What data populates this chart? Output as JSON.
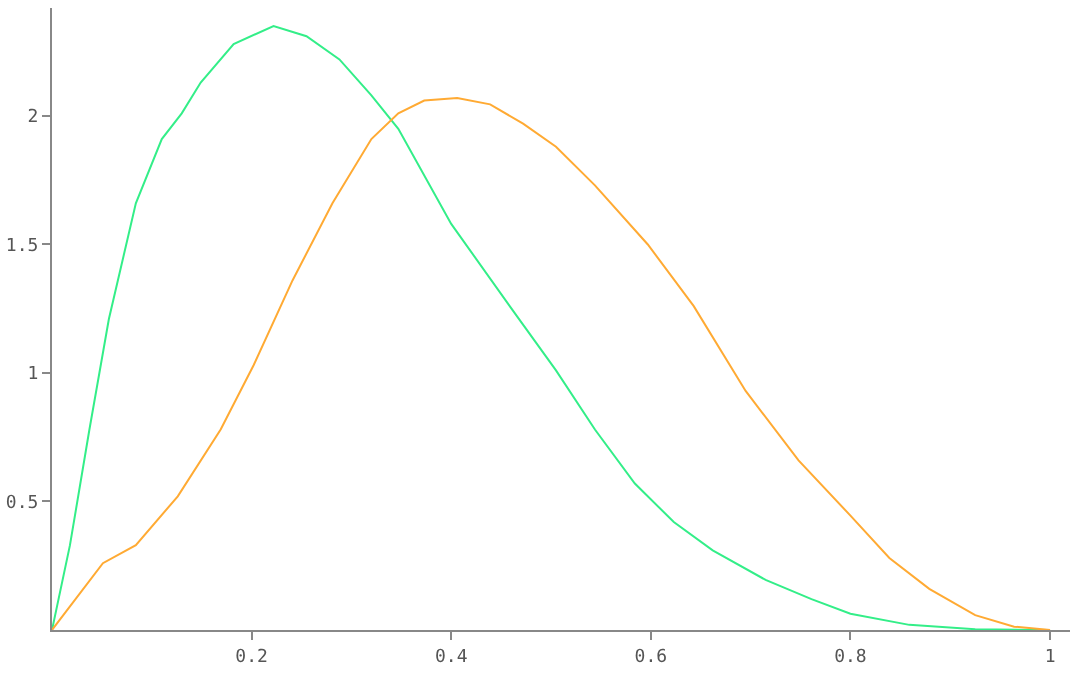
{
  "chart_data": {
    "type": "line",
    "grid": false,
    "xlim": [
      0,
      1.02
    ],
    "ylim": [
      0,
      2.42
    ],
    "xticks": [
      0.2,
      0.4,
      0.6,
      0.8,
      1
    ],
    "yticks": [
      0.5,
      1,
      1.5,
      2
    ],
    "marker": "none",
    "line_style": "solid",
    "series": [
      {
        "color": "#33ee88",
        "x": [
          0,
          0.018,
          0.0375,
          0.057,
          0.084,
          0.11,
          0.13,
          0.149,
          0.182,
          0.222,
          0.255,
          0.288,
          0.32,
          0.347,
          0.4,
          0.466,
          0.505,
          0.544,
          0.584,
          0.623,
          0.662,
          0.715,
          0.761,
          0.8,
          0.859,
          0.925,
          1
        ],
        "values": [
          0,
          0.33,
          0.78,
          1.21,
          1.66,
          1.91,
          2.01,
          2.13,
          2.28,
          2.35,
          2.31,
          2.22,
          2.08,
          1.95,
          1.58,
          1.22,
          1.01,
          0.78,
          0.57,
          0.42,
          0.31,
          0.195,
          0.12,
          0.063,
          0.02,
          0.003,
          0
        ]
      },
      {
        "color": "#ffaa33",
        "x": [
          0,
          0.051,
          0.084,
          0.126,
          0.169,
          0.202,
          0.241,
          0.281,
          0.32,
          0.347,
          0.373,
          0.406,
          0.439,
          0.472,
          0.505,
          0.544,
          0.597,
          0.643,
          0.695,
          0.748,
          0.8,
          0.839,
          0.879,
          0.925,
          0.964,
          1
        ],
        "values": [
          0,
          0.26,
          0.33,
          0.52,
          0.78,
          1.03,
          1.36,
          1.66,
          1.91,
          2.01,
          2.06,
          2.07,
          2.045,
          1.97,
          1.88,
          1.73,
          1.5,
          1.26,
          0.93,
          0.66,
          0.445,
          0.28,
          0.16,
          0.058,
          0.013,
          0
        ]
      }
    ]
  }
}
